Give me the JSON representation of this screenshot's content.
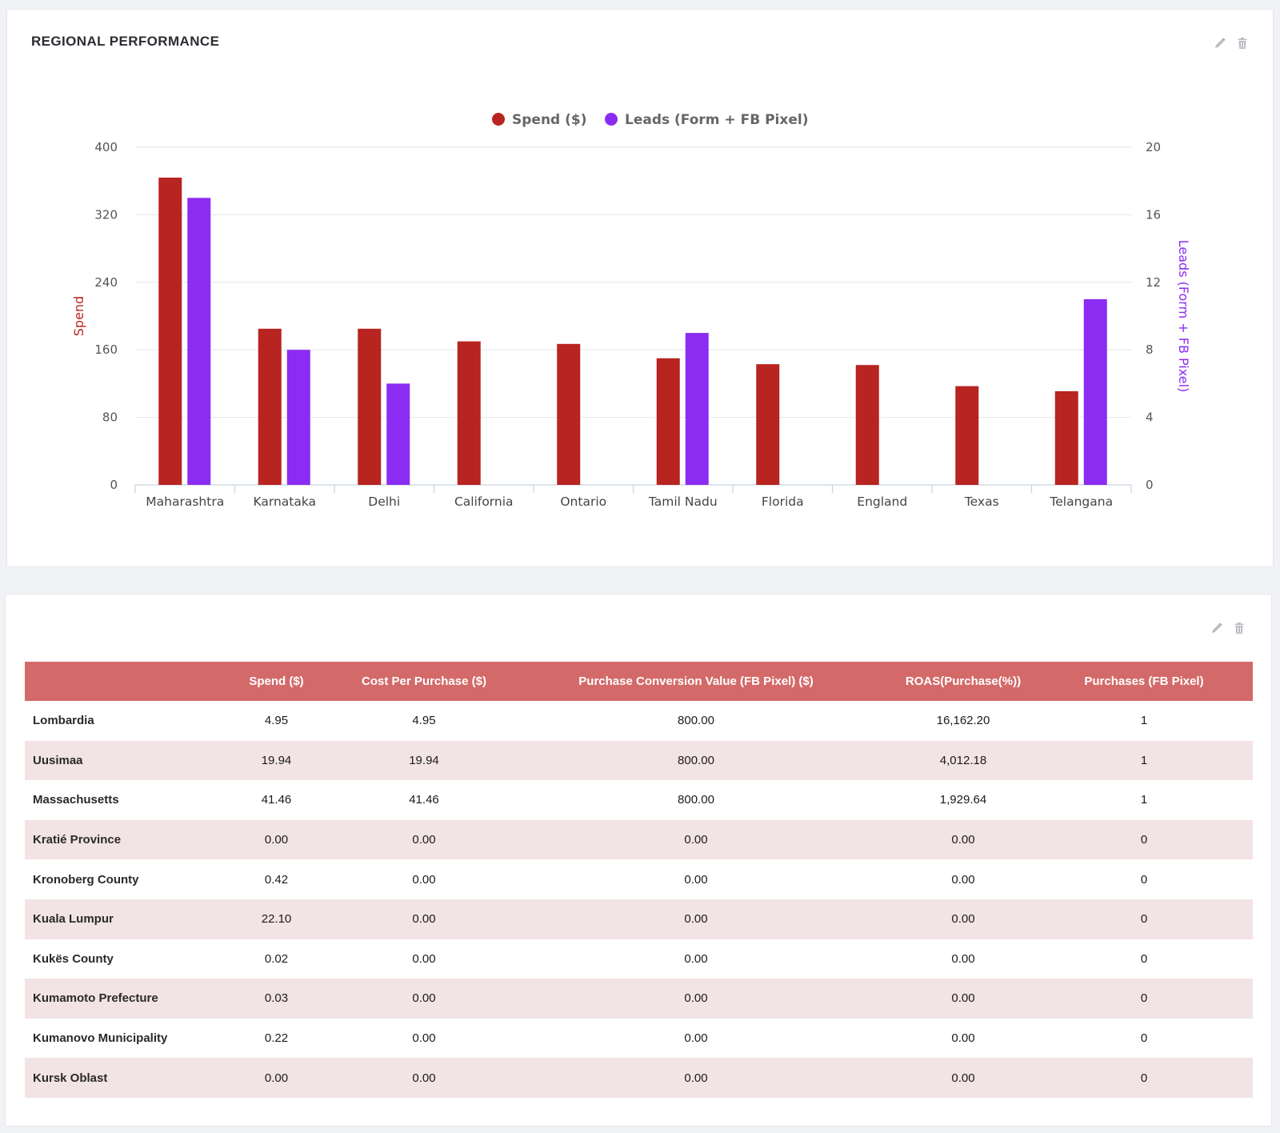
{
  "chart_card": {
    "title": "REGIONAL PERFORMANCE",
    "edit_icon": "pencil-icon",
    "delete_icon": "trash-icon"
  },
  "colors": {
    "spend": "#b82420",
    "leads": "#8b2cf2",
    "table_header": "#d36a69",
    "table_stripe": "#f2e3e4"
  },
  "chart_data": {
    "type": "bar",
    "categories": [
      "Maharashtra",
      "Karnataka",
      "Delhi",
      "California",
      "Ontario",
      "Tamil Nadu",
      "Florida",
      "England",
      "Texas",
      "Telangana"
    ],
    "series": [
      {
        "name": "Spend ($)",
        "axis": "left",
        "color": "#b82420",
        "values": [
          364,
          185,
          185,
          170,
          167,
          150,
          143,
          142,
          117,
          111
        ]
      },
      {
        "name": "Leads (Form + FB Pixel)",
        "axis": "right",
        "color": "#8b2cf2",
        "values": [
          17,
          8,
          6,
          0,
          0,
          9,
          0,
          0,
          0,
          11
        ]
      }
    ],
    "left_axis": {
      "title": "Spend",
      "ylim": [
        0,
        400
      ],
      "ticks": [
        "0",
        "80",
        "160",
        "240",
        "320",
        "400"
      ]
    },
    "right_axis": {
      "title": "Leads (Form + FB Pixel)",
      "ylim": [
        0,
        20
      ],
      "ticks": [
        "0",
        "4",
        "8",
        "12",
        "16",
        "20"
      ]
    },
    "legend_position": "top-center",
    "grid": true
  },
  "table_card": {
    "edit_icon": "pencil-icon",
    "delete_icon": "trash-icon",
    "columns": [
      "",
      "Spend ($)",
      "Cost Per Purchase ($)",
      "Purchase Conversion Value (FB Pixel) ($)",
      "ROAS(Purchase(%))",
      "Purchases (FB Pixel)"
    ],
    "rows": [
      [
        "Lombardia",
        "4.95",
        "4.95",
        "800.00",
        "16,162.20",
        "1"
      ],
      [
        "Uusimaa",
        "19.94",
        "19.94",
        "800.00",
        "4,012.18",
        "1"
      ],
      [
        "Massachusetts",
        "41.46",
        "41.46",
        "800.00",
        "1,929.64",
        "1"
      ],
      [
        "Kratié Province",
        "0.00",
        "0.00",
        "0.00",
        "0.00",
        "0"
      ],
      [
        "Kronoberg County",
        "0.42",
        "0.00",
        "0.00",
        "0.00",
        "0"
      ],
      [
        "Kuala Lumpur",
        "22.10",
        "0.00",
        "0.00",
        "0.00",
        "0"
      ],
      [
        "Kukës County",
        "0.02",
        "0.00",
        "0.00",
        "0.00",
        "0"
      ],
      [
        "Kumamoto Prefecture",
        "0.03",
        "0.00",
        "0.00",
        "0.00",
        "0"
      ],
      [
        "Kumanovo Municipality",
        "0.22",
        "0.00",
        "0.00",
        "0.00",
        "0"
      ],
      [
        "Kursk Oblast",
        "0.00",
        "0.00",
        "0.00",
        "0.00",
        "0"
      ]
    ]
  }
}
